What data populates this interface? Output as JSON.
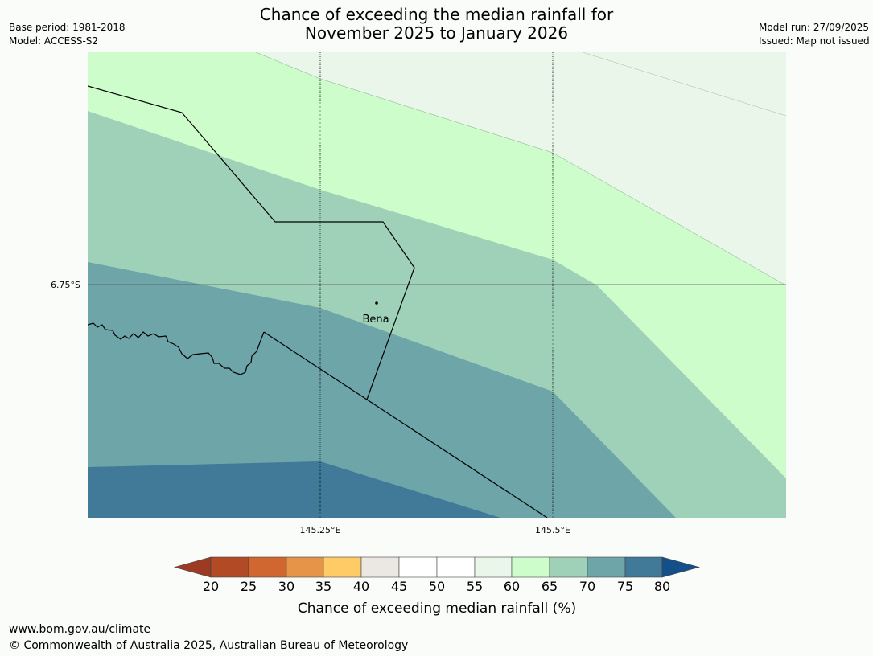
{
  "header": {
    "title_line1": "Chance of exceeding the median rainfall for",
    "title_line2": "November 2025 to January 2026",
    "base_period": "Base period: 1981-2018",
    "model": "Model: ACCESS-S2",
    "model_run": "Model run: 27/09/2025",
    "issued": "Issued: Map not issued"
  },
  "map": {
    "lat_label": "6.75°S",
    "lon_labels": [
      "145.25°E",
      "145.5°E"
    ],
    "place_label": "Bena"
  },
  "legend": {
    "tick_labels": [
      "20",
      "25",
      "30",
      "35",
      "40",
      "45",
      "50",
      "55",
      "60",
      "65",
      "70",
      "75",
      "80"
    ],
    "colors": {
      "below_20": "#9c3a24",
      "20_25": "#b24a26",
      "25_30": "#d06630",
      "30_35": "#e59448",
      "35_40": "#fecb66",
      "40_45": "#ebe8e3",
      "45_50": "#ffffff",
      "50_55": "#ffffff",
      "55_60": "#eaf6ea",
      "60_65": "#ccfdcb",
      "65_70": "#9fd1b8",
      "70_75": "#6ea5a8",
      "75_80": "#417998",
      "above_80": "#154f89"
    },
    "label": "Chance of exceeding median rainfall (%)"
  },
  "footer": {
    "url": "www.bom.gov.au/climate",
    "copyright": "© Commonwealth of Australia 2025, Australian Bureau of Meteorology"
  }
}
